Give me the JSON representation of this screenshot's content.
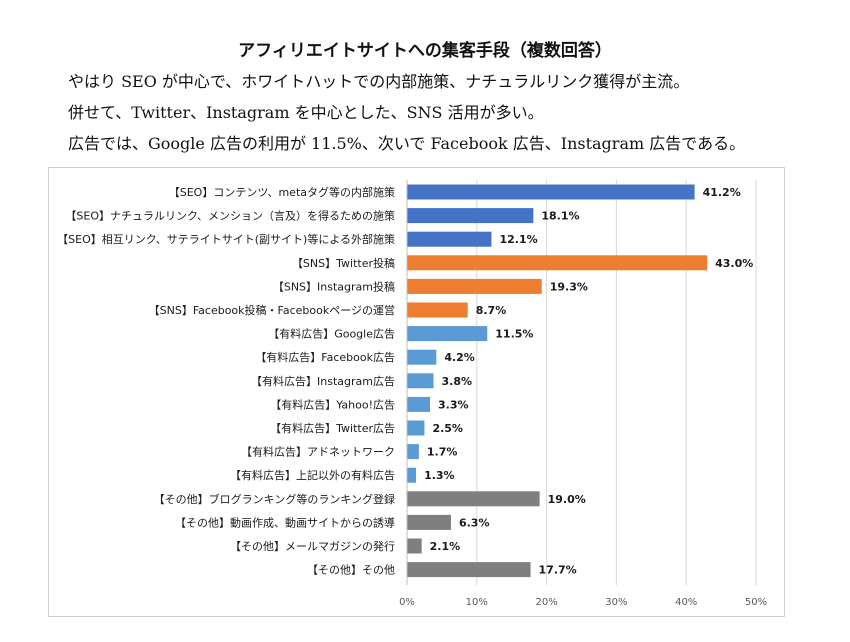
{
  "heading": {
    "title": "アフィリエイトサイトへの集客手段（複数回答）",
    "line1": "やはり SEO が中心で、ホワイトハットでの内部施策、ナチュラルリンク獲得が主流。",
    "line2": "併せて、Twitter、Instagram を中心とした、SNS 活用が多い。",
    "line3": "広告では、Google 広告の利用が 11.5%、次いで Facebook 広告、Instagram 広告である。"
  },
  "chart_data": {
    "type": "bar",
    "orientation": "horizontal",
    "categories": [
      "【SEO】コンテンツ、metaタグ等の内部施策",
      "【SEO】ナチュラルリンク、メンション（言及）を得るための施策",
      "【SEO】相互リンク、サテライトサイト(副サイト)等による外部施策",
      "【SNS】Twitter投稿",
      "【SNS】Instagram投稿",
      "【SNS】Facebook投稿・Facebookページの運営",
      "【有料広告】Google広告",
      "【有料広告】Facebook広告",
      "【有料広告】Instagram広告",
      "【有料広告】Yahoo!広告",
      "【有料広告】Twitter広告",
      "【有料広告】アドネットワーク",
      "【有料広告】上記以外の有料広告",
      "【その他】ブログランキング等のランキング登録",
      "【その他】動画作成、動画サイトからの誘導",
      "【その他】メールマガジンの発行",
      "【その他】その他"
    ],
    "values": [
      41.2,
      18.1,
      12.1,
      43.0,
      19.3,
      8.7,
      11.5,
      4.2,
      3.8,
      3.3,
      2.5,
      1.7,
      1.3,
      19.0,
      6.3,
      2.1,
      17.7
    ],
    "value_labels": [
      "41.2%",
      "18.1%",
      "12.1%",
      "43.0%",
      "19.3%",
      "8.7%",
      "11.5%",
      "4.2%",
      "3.8%",
      "3.3%",
      "2.5%",
      "1.7%",
      "1.3%",
      "19.0%",
      "6.3%",
      "2.1%",
      "17.7%"
    ],
    "groups": [
      "seo",
      "seo",
      "seo",
      "sns",
      "sns",
      "sns",
      "ad",
      "ad",
      "ad",
      "ad",
      "ad",
      "ad",
      "ad",
      "other",
      "other",
      "other",
      "other"
    ],
    "colors": {
      "seo": "#4472C4",
      "sns": "#ED7D31",
      "ad": "#5B9BD5",
      "other": "#7F7F7F"
    },
    "xlim": [
      0,
      50
    ],
    "xticks": [
      "0%",
      "10%",
      "20%",
      "30%",
      "40%",
      "50%"
    ],
    "grid": true,
    "legend": "none"
  }
}
